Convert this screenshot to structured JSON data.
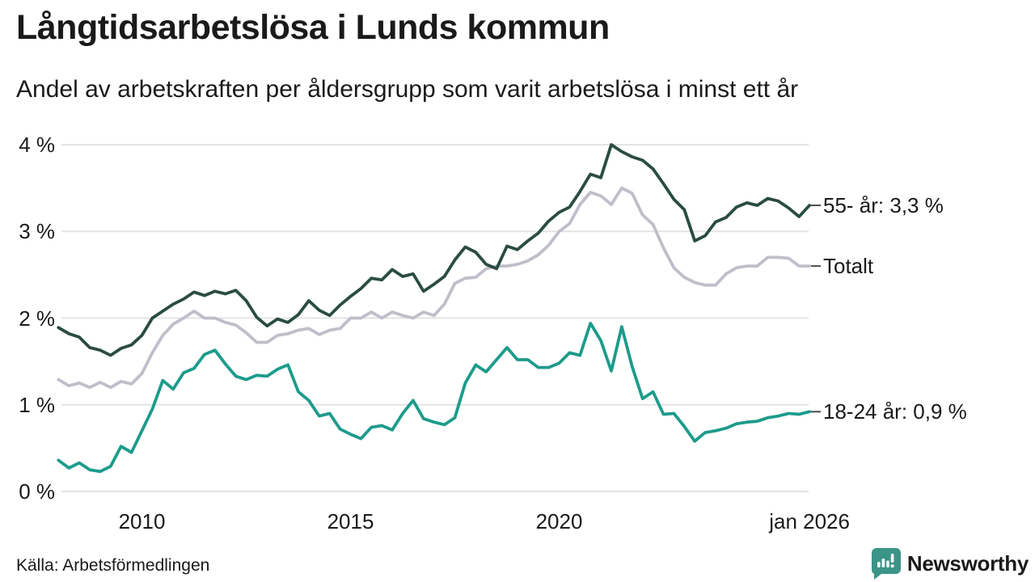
{
  "header": {
    "title": "Långtidsarbetslösa i Lunds kommun",
    "subtitle": "Andel av arbetskraften per åldersgrupp som varit arbetslösa i minst ett år"
  },
  "footer": {
    "source": "Källa: Arbetsförmedlingen",
    "brand": "Newsworthy",
    "brand_color": "#3b9488"
  },
  "colors": {
    "series_55": "#2a4c41",
    "series_total": "#bfbeca",
    "series_1824": "#1d9b8b",
    "grid": "#e3e3e5",
    "end_tick": "#4a4a4a",
    "text": "#1a1a1a"
  },
  "chart_data": {
    "type": "line",
    "title": "Långtidsarbetslösa i Lunds kommun",
    "subtitle": "Andel av arbetskraften per åldersgrupp som varit arbetslösa i minst ett år",
    "xlabel": "",
    "ylabel": "",
    "x_unit": "decimal_year",
    "ylim": [
      0,
      4.3
    ],
    "grid": true,
    "legend_position": "right-end-labels",
    "y_ticks": [
      {
        "label": "4 %",
        "value": 4
      },
      {
        "label": "3 %",
        "value": 3
      },
      {
        "label": "2 %",
        "value": 2
      },
      {
        "label": "1 %",
        "value": 1
      },
      {
        "label": "0 %",
        "value": 0
      }
    ],
    "x_ticks": [
      {
        "label": "2010",
        "value": 2010
      },
      {
        "label": "2015",
        "value": 2015
      },
      {
        "label": "2020",
        "value": 2020
      },
      {
        "label": "jan 2026",
        "value": 2026
      }
    ],
    "x": [
      2008.0,
      2008.25,
      2008.5,
      2008.75,
      2009.0,
      2009.25,
      2009.5,
      2009.75,
      2010.0,
      2010.25,
      2010.5,
      2010.75,
      2011.0,
      2011.25,
      2011.5,
      2011.75,
      2012.0,
      2012.25,
      2012.5,
      2012.75,
      2013.0,
      2013.25,
      2013.5,
      2013.75,
      2014.0,
      2014.25,
      2014.5,
      2014.75,
      2015.0,
      2015.25,
      2015.5,
      2015.75,
      2016.0,
      2016.25,
      2016.5,
      2016.75,
      2017.0,
      2017.25,
      2017.5,
      2017.75,
      2018.0,
      2018.25,
      2018.5,
      2018.75,
      2019.0,
      2019.25,
      2019.5,
      2019.75,
      2020.0,
      2020.25,
      2020.5,
      2020.75,
      2021.0,
      2021.25,
      2021.5,
      2021.75,
      2022.0,
      2022.25,
      2022.5,
      2022.75,
      2023.0,
      2023.25,
      2023.5,
      2023.75,
      2024.0,
      2024.25,
      2024.5,
      2024.75,
      2025.0,
      2025.25,
      2025.5,
      2025.75,
      2026.0
    ],
    "series": [
      {
        "name": "55- år",
        "end_label": "55- år: 3,3 %",
        "end_value_label": "3,3 %",
        "color": "#2a4c41",
        "values": [
          1.89,
          1.82,
          1.78,
          1.66,
          1.63,
          1.57,
          1.65,
          1.69,
          1.8,
          2.0,
          2.08,
          2.16,
          2.22,
          2.3,
          2.26,
          2.31,
          2.28,
          2.32,
          2.2,
          2.01,
          1.91,
          1.99,
          1.95,
          2.04,
          2.2,
          2.09,
          2.03,
          2.15,
          2.25,
          2.34,
          2.46,
          2.44,
          2.56,
          2.48,
          2.51,
          2.31,
          2.39,
          2.48,
          2.67,
          2.82,
          2.76,
          2.62,
          2.57,
          2.83,
          2.79,
          2.89,
          2.98,
          3.12,
          3.22,
          3.28,
          3.46,
          3.66,
          3.62,
          4.0,
          3.92,
          3.86,
          3.82,
          3.72,
          3.55,
          3.37,
          3.25,
          2.89,
          2.95,
          3.11,
          3.16,
          3.28,
          3.33,
          3.3,
          3.38,
          3.35,
          3.27,
          3.17,
          3.3
        ]
      },
      {
        "name": "Totalt",
        "end_label": "Totalt",
        "end_value_label": "",
        "color": "#bfbeca",
        "values": [
          1.29,
          1.22,
          1.25,
          1.2,
          1.26,
          1.2,
          1.27,
          1.24,
          1.36,
          1.6,
          1.8,
          1.93,
          2.0,
          2.08,
          2.0,
          2.0,
          1.95,
          1.92,
          1.83,
          1.72,
          1.72,
          1.8,
          1.82,
          1.86,
          1.88,
          1.81,
          1.86,
          1.88,
          2.0,
          2.0,
          2.07,
          2.0,
          2.07,
          2.03,
          2.0,
          2.07,
          2.03,
          2.16,
          2.4,
          2.46,
          2.47,
          2.57,
          2.6,
          2.6,
          2.62,
          2.66,
          2.73,
          2.84,
          3.0,
          3.09,
          3.31,
          3.45,
          3.41,
          3.31,
          3.5,
          3.44,
          3.19,
          3.08,
          2.81,
          2.58,
          2.47,
          2.41,
          2.38,
          2.38,
          2.51,
          2.58,
          2.6,
          2.6,
          2.7,
          2.7,
          2.69,
          2.6,
          2.6
        ]
      },
      {
        "name": "18-24 år",
        "end_label": "18-24 år: 0,9 %",
        "end_value_label": "0,9 %",
        "color": "#1d9b8b",
        "values": [
          0.36,
          0.27,
          0.33,
          0.25,
          0.23,
          0.29,
          0.52,
          0.45,
          0.7,
          0.95,
          1.28,
          1.18,
          1.37,
          1.42,
          1.58,
          1.63,
          1.47,
          1.33,
          1.29,
          1.34,
          1.33,
          1.41,
          1.46,
          1.15,
          1.05,
          0.87,
          0.9,
          0.72,
          0.66,
          0.61,
          0.74,
          0.76,
          0.71,
          0.9,
          1.05,
          0.84,
          0.8,
          0.77,
          0.85,
          1.25,
          1.46,
          1.38,
          1.52,
          1.66,
          1.52,
          1.52,
          1.43,
          1.43,
          1.48,
          1.6,
          1.57,
          1.94,
          1.74,
          1.39,
          1.9,
          1.44,
          1.07,
          1.15,
          0.89,
          0.9,
          0.75,
          0.58,
          0.68,
          0.7,
          0.73,
          0.78,
          0.8,
          0.81,
          0.85,
          0.87,
          0.9,
          0.89,
          0.92
        ]
      }
    ]
  }
}
